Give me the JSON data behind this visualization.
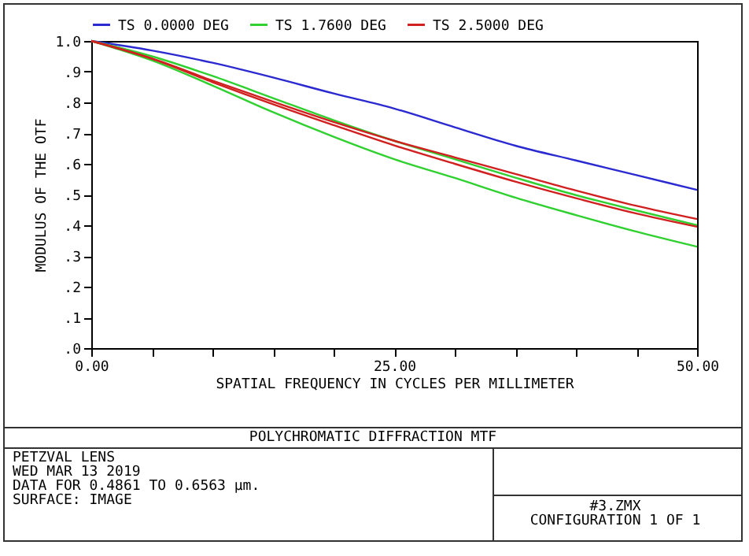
{
  "chart_data": {
    "type": "line",
    "title": "POLYCHROMATIC DIFFRACTION MTF",
    "xlabel": "SPATIAL FREQUENCY IN CYCLES PER MILLIMETER",
    "ylabel": "MODULUS OF THE OTF",
    "x": [
      0,
      5,
      10,
      15,
      20,
      25,
      30,
      35,
      40,
      45,
      50
    ],
    "series": [
      {
        "name": "TS 0.0000 DEG",
        "color": "#2a2ad0",
        "values": [
          1.0,
          0.969,
          0.929,
          0.881,
          0.829,
          0.78,
          0.719,
          0.659,
          0.611,
          0.563,
          0.515
        ]
      },
      {
        "name": "TS 1.7600 DEG",
        "color": "#30d030",
        "values": [
          1.0,
          0.95,
          0.886,
          0.814,
          0.742,
          0.675,
          0.615,
          0.555,
          0.498,
          0.448,
          0.4
        ]
      },
      {
        "color": "#30d030",
        "values": [
          1.0,
          0.937,
          0.855,
          0.768,
          0.688,
          0.615,
          0.554,
          0.49,
          0.433,
          0.379,
          0.33
        ]
      },
      {
        "name": "TS 2.5000 DEG",
        "color": "#d02020",
        "values": [
          1.0,
          0.943,
          0.871,
          0.802,
          0.736,
          0.675,
          0.621,
          0.567,
          0.513,
          0.463,
          0.42
        ]
      },
      {
        "color": "#d02020",
        "values": [
          1.0,
          0.942,
          0.866,
          0.794,
          0.726,
          0.66,
          0.6,
          0.542,
          0.488,
          0.438,
          0.395
        ]
      }
    ],
    "xlim": [
      0,
      50
    ],
    "ylim": [
      0,
      1
    ],
    "xticks": [
      {
        "value": 0,
        "label": "0.00"
      },
      {
        "value": 5,
        "label": null
      },
      {
        "value": 10,
        "label": null
      },
      {
        "value": 15,
        "label": null
      },
      {
        "value": 20,
        "label": null
      },
      {
        "value": 25,
        "label": "25.00"
      },
      {
        "value": 30,
        "label": null
      },
      {
        "value": 35,
        "label": null
      },
      {
        "value": 40,
        "label": null
      },
      {
        "value": 45,
        "label": null
      },
      {
        "value": 50,
        "label": "50.00"
      }
    ],
    "yticks": [
      {
        "value": 0,
        "label": ".0"
      },
      {
        "value": 0.1,
        "label": ".1"
      },
      {
        "value": 0.2,
        "label": ".2"
      },
      {
        "value": 0.3,
        "label": ".3"
      },
      {
        "value": 0.4,
        "label": ".4"
      },
      {
        "value": 0.5,
        "label": ".5"
      },
      {
        "value": 0.6,
        "label": ".6"
      },
      {
        "value": 0.7,
        "label": ".7"
      },
      {
        "value": 0.8,
        "label": ".8"
      },
      {
        "value": 0.9,
        "label": ".9"
      },
      {
        "value": 1,
        "label": "1.0"
      }
    ],
    "grid": false,
    "legend": "top",
    "marker": "none",
    "line_style": "solid",
    "annotations": [
      "PETZVAL LENS",
      "WED MAR 13 2019",
      "DATA FOR 0.4861 TO 0.6563 µm.",
      "SURFACE: IMAGE",
      "#3.ZMX",
      "CONFIGURATION 1 OF 1"
    ]
  }
}
